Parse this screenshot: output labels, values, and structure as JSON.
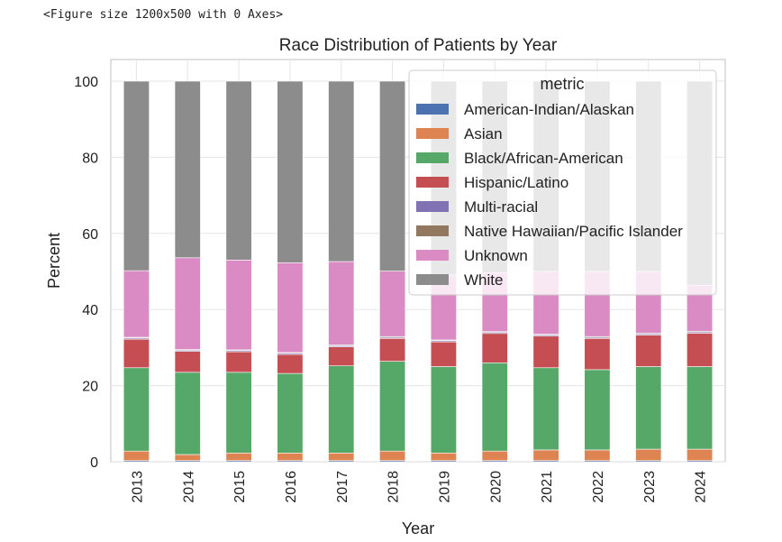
{
  "figure_note": "<Figure size 1200x500 with 0 Axes>",
  "chart_data": {
    "type": "bar",
    "stacked": true,
    "title": "Race Distribution of Patients by Year",
    "xlabel": "Year",
    "ylabel": "Percent",
    "ylim": [
      0,
      105
    ],
    "yticks": [
      0,
      20,
      40,
      60,
      80,
      100
    ],
    "grid": true,
    "legend_title": "metric",
    "legend_position": "top-right",
    "categories": [
      "2013",
      "2014",
      "2015",
      "2016",
      "2017",
      "2018",
      "2019",
      "2020",
      "2021",
      "2022",
      "2023",
      "2024"
    ],
    "series": [
      {
        "name": "American-Indian/Alaskan",
        "color": "#4c72b0",
        "values": [
          0.3,
          0.3,
          0.3,
          0.3,
          0.3,
          0.3,
          0.3,
          0.3,
          0.3,
          0.3,
          0.3,
          0.3
        ]
      },
      {
        "name": "Asian",
        "color": "#dd8452",
        "values": [
          2.5,
          1.6,
          2.0,
          2.0,
          2.0,
          2.5,
          2.0,
          2.5,
          2.8,
          2.8,
          3.0,
          3.0
        ]
      },
      {
        "name": "Black/African-American",
        "color": "#55a868",
        "values": [
          21.9,
          21.6,
          21.2,
          20.9,
          22.9,
          23.6,
          22.7,
          23.2,
          21.6,
          21.1,
          21.7,
          21.7
        ]
      },
      {
        "name": "Hispanic/Latino",
        "color": "#c44e52",
        "values": [
          7.5,
          5.5,
          5.4,
          5.0,
          5.0,
          6.0,
          6.5,
          7.7,
          8.3,
          8.2,
          8.3,
          8.8
        ]
      },
      {
        "name": "Multi-racial",
        "color": "#8172b3",
        "values": [
          0.3,
          0.3,
          0.3,
          0.3,
          0.3,
          0.3,
          0.3,
          0.3,
          0.3,
          0.3,
          0.3,
          0.3
        ]
      },
      {
        "name": "Native Hawaiian/Pacific Islander",
        "color": "#937860",
        "values": [
          0.2,
          0.2,
          0.2,
          0.2,
          0.2,
          0.2,
          0.2,
          0.2,
          0.2,
          0.2,
          0.2,
          0.2
        ]
      },
      {
        "name": "Unknown",
        "color": "#da8bc3",
        "values": [
          17.5,
          24.1,
          23.6,
          23.6,
          21.9,
          17.2,
          17.1,
          15.5,
          16.5,
          17.1,
          16.2,
          12.1
        ]
      },
      {
        "name": "White",
        "color": "#8c8c8c",
        "values": [
          49.8,
          46.4,
          47.0,
          47.7,
          47.4,
          49.9,
          50.9,
          50.3,
          50.0,
          50.0,
          50.0,
          53.6
        ]
      }
    ]
  }
}
